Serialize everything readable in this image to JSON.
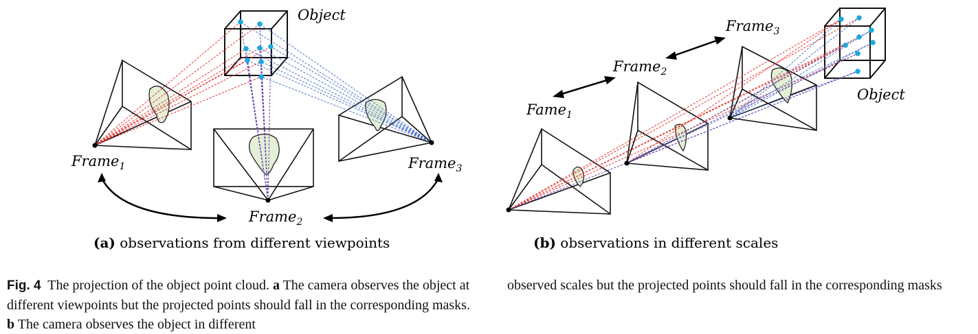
{
  "labels": {
    "object_a": "Object",
    "frame1_a": "Frame",
    "frame1_a_sub": "1",
    "frame2_a": "Frame",
    "frame2_a_sub": "2",
    "frame3_a": "Frame",
    "frame3_a_sub": "3",
    "object_b": "Object",
    "frame1_b": "Fame",
    "frame1_b_sub": "1",
    "frame2_b": "Frame",
    "frame2_b_sub": "2",
    "frame3_b": "Frame",
    "frame3_b_sub": "3"
  },
  "subfigures": {
    "a_letter": "(a)",
    "a_text": " observations from different viewpoints",
    "b_letter": "(b)",
    "b_text": " observations in different scales"
  },
  "caption": {
    "fig_label": "Fig. 4",
    "left_text_1": "  The projection of the object point cloud. ",
    "a_marker": "a",
    "left_text_2": " The camera observes the object at different viewpoints but the projected points should fall in the corresponding masks. ",
    "b_marker": "b",
    "left_text_3": " The camera observes the object in different",
    "right_text": "observed scales but the projected points should fall in the corresponding masks"
  },
  "colors": {
    "ray_red": "#e8302b",
    "ray_blue": "#4a72c8",
    "ray_purple": "#6a3fb0",
    "point_cyan": "#1ca7e0",
    "mask_fill": "#e4efd6"
  }
}
